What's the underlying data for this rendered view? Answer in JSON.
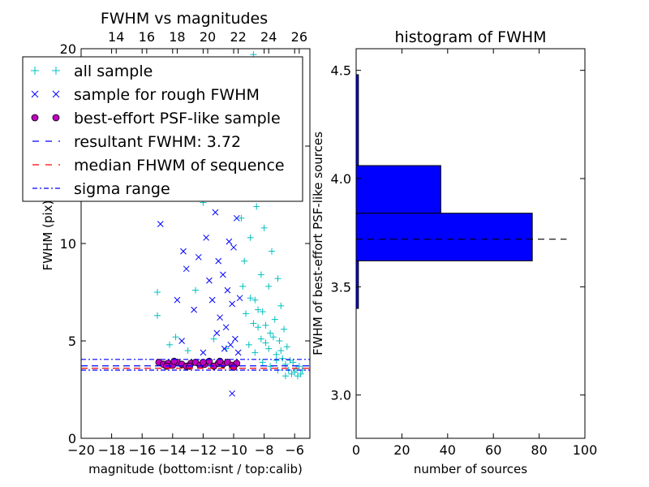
{
  "chart_data": [
    {
      "type": "scatter",
      "title": "FWHM vs magnitudes",
      "xlabel": "magnitude (bottom:isnt / top:calib)",
      "ylabel": "FWHM (pix)",
      "xlim": [
        -20,
        -5
      ],
      "ylim": [
        0,
        20
      ],
      "x_ticks": [
        -20,
        -18,
        -16,
        -14,
        -12,
        -10,
        -8,
        -6
      ],
      "x_tick_labels": [
        "−20",
        "−18",
        "−16",
        "−14",
        "−12",
        "−10",
        "−8",
        "−6"
      ],
      "y_ticks": [
        0,
        5,
        10,
        15,
        20
      ],
      "y_tick_labels": [
        "0",
        "5",
        "10",
        "15",
        "20"
      ],
      "top_axis": {
        "offset": 31.7,
        "ticks": [
          14,
          16,
          18,
          20,
          22,
          24,
          26
        ],
        "tick_labels": [
          "14",
          "16",
          "18",
          "20",
          "22",
          "24",
          "26"
        ]
      },
      "legend": {
        "placement": "upper-left",
        "entries": [
          {
            "label": "all sample",
            "marker": "+",
            "color": "#00bfbf"
          },
          {
            "label": "sample for rough FWHM",
            "marker": "x",
            "color": "#0000ff"
          },
          {
            "label": "best-effort PSF-like sample",
            "marker": "o",
            "color": "#bf00bf"
          },
          {
            "label": "resultant FWHM: 3.72",
            "style": "dashed",
            "color": "#0000ff"
          },
          {
            "label": "median FHWM of sequence",
            "style": "dashed",
            "color": "#ff0000"
          },
          {
            "label": "sigma range",
            "style": "dashdot",
            "color": "#0000ff"
          }
        ]
      },
      "series": [
        {
          "name": "all sample",
          "marker": "+",
          "color": "#00bfbf",
          "points": [
            [
              -15.0,
              7.5
            ],
            [
              -15.0,
              6.3
            ],
            [
              -14.2,
              4.8
            ],
            [
              -13.8,
              5.2
            ],
            [
              -14.8,
              15.0
            ],
            [
              -13.0,
              4.5
            ],
            [
              -12.5,
              7.6
            ],
            [
              -12.0,
              12.1
            ],
            [
              -11.6,
              14.8
            ],
            [
              -11.3,
              5.1
            ],
            [
              -10.9,
              17.2
            ],
            [
              -10.7,
              19.2
            ],
            [
              -10.5,
              4.6
            ],
            [
              -10.3,
              12.5
            ],
            [
              -9.7,
              18.5
            ],
            [
              -9.5,
              11.3
            ],
            [
              -9.4,
              13.9
            ],
            [
              -9.3,
              9.1
            ],
            [
              -9.1,
              16.1
            ],
            [
              -9.0,
              4.8
            ],
            [
              -8.9,
              10.3
            ],
            [
              -8.8,
              13.5
            ],
            [
              -8.7,
              19.7
            ],
            [
              -8.6,
              7.1
            ],
            [
              -8.5,
              11.9
            ],
            [
              -8.4,
              5.7
            ],
            [
              -8.3,
              15.2
            ],
            [
              -8.2,
              8.4
            ],
            [
              -8.1,
              6.5
            ],
            [
              -8.0,
              10.8
            ],
            [
              -7.9,
              4.9
            ],
            [
              -7.8,
              12.7
            ],
            [
              -7.7,
              7.8
            ],
            [
              -7.6,
              5.4
            ],
            [
              -7.5,
              9.6
            ],
            [
              -7.4,
              16.4
            ],
            [
              -7.3,
              6.1
            ],
            [
              -7.2,
              4.3
            ],
            [
              -7.1,
              8.2
            ],
            [
              -7.0,
              5.0
            ],
            [
              -6.9,
              6.8
            ],
            [
              -6.8,
              4.1
            ],
            [
              -6.7,
              5.6
            ],
            [
              -6.6,
              3.8
            ],
            [
              -6.5,
              4.7
            ],
            [
              -6.4,
              3.5
            ],
            [
              -6.3,
              4.0
            ],
            [
              -6.2,
              3.3
            ],
            [
              -6.1,
              3.9
            ],
            [
              -6.0,
              3.4
            ],
            [
              -5.9,
              3.6
            ],
            [
              -5.8,
              3.2
            ],
            [
              -5.7,
              3.7
            ],
            [
              -5.6,
              3.3
            ],
            [
              -5.5,
              3.5
            ],
            [
              -8.6,
              4.4
            ],
            [
              -8.1,
              3.9
            ],
            [
              -7.6,
              3.7
            ],
            [
              -7.1,
              3.5
            ],
            [
              -6.6,
              3.2
            ],
            [
              -9.2,
              6.4
            ],
            [
              -8.7,
              5.9
            ],
            [
              -8.2,
              5.1
            ],
            [
              -7.7,
              4.6
            ],
            [
              -7.2,
              4.0
            ],
            [
              -9.4,
              7.8
            ],
            [
              -8.9,
              7.2
            ],
            [
              -8.4,
              6.6
            ],
            [
              -7.9,
              5.8
            ],
            [
              -7.4,
              5.2
            ],
            [
              -6.9,
              4.5
            ],
            [
              -8.0,
              14.3
            ],
            [
              -7.5,
              13.1
            ],
            [
              -9.0,
              17.6
            ]
          ]
        },
        {
          "name": "sample for rough FWHM",
          "marker": "x",
          "color": "#0000ff",
          "points": [
            [
              -14.8,
              11.0
            ],
            [
              -13.7,
              7.1
            ],
            [
              -13.4,
              5.0
            ],
            [
              -13.3,
              9.6
            ],
            [
              -13.1,
              8.7
            ],
            [
              -12.6,
              6.6
            ],
            [
              -12.3,
              9.3
            ],
            [
              -12.2,
              16.9
            ],
            [
              -12.0,
              4.4
            ],
            [
              -11.9,
              13.8
            ],
            [
              -11.8,
              10.3
            ],
            [
              -11.6,
              8.1
            ],
            [
              -11.4,
              7.1
            ],
            [
              -11.2,
              11.6
            ],
            [
              -11.0,
              9.1
            ],
            [
              -10.9,
              6.2
            ],
            [
              -10.8,
              15.2
            ],
            [
              -10.7,
              8.4
            ],
            [
              -10.6,
              12.4
            ],
            [
              -10.5,
              5.7
            ],
            [
              -10.4,
              7.6
            ],
            [
              -10.3,
              10.1
            ],
            [
              -10.2,
              4.8
            ],
            [
              -10.1,
              6.9
            ],
            [
              -10.0,
              9.8
            ],
            [
              -9.9,
              5.1
            ],
            [
              -9.8,
              11.3
            ],
            [
              -9.7,
              4.4
            ],
            [
              -9.6,
              7.2
            ],
            [
              -10.1,
              2.3
            ],
            [
              -10.6,
              4.6
            ],
            [
              -11.1,
              5.4
            ]
          ]
        },
        {
          "name": "best-effort PSF-like sample",
          "marker": "o",
          "color": "#bf00bf",
          "points": [
            [
              -14.9,
              3.9
            ],
            [
              -14.6,
              3.8
            ],
            [
              -14.3,
              3.85
            ],
            [
              -14.0,
              3.75
            ],
            [
              -13.7,
              3.9
            ],
            [
              -13.4,
              3.8
            ],
            [
              -13.1,
              3.7
            ],
            [
              -12.8,
              3.85
            ],
            [
              -12.5,
              3.9
            ],
            [
              -12.2,
              3.75
            ],
            [
              -11.9,
              3.8
            ],
            [
              -11.6,
              3.95
            ],
            [
              -11.3,
              3.7
            ],
            [
              -11.0,
              3.85
            ],
            [
              -10.7,
              3.8
            ],
            [
              -10.4,
              3.9
            ],
            [
              -10.1,
              3.75
            ],
            [
              -9.8,
              3.85
            ],
            [
              -14.4,
              3.7
            ],
            [
              -13.9,
              3.95
            ],
            [
              -12.9,
              3.7
            ],
            [
              -12.0,
              3.9
            ],
            [
              -10.9,
              3.95
            ],
            [
              -10.0,
              3.65
            ]
          ]
        },
        {
          "name": "resultant FWHM: 3.72",
          "type": "hline",
          "style": "dashed",
          "color": "#0000ff",
          "y": 3.72
        },
        {
          "name": "median FHWM of sequence",
          "type": "hline",
          "style": "dashed",
          "color": "#ff0000",
          "y": 3.72
        },
        {
          "name": "sigma range",
          "type": "hline",
          "style": "dashdot",
          "color": "#0000ff",
          "y": [
            3.5,
            4.05
          ]
        }
      ]
    },
    {
      "type": "bar",
      "orientation": "horizontal",
      "title": "histogram of FWHM",
      "xlabel": "number of sources",
      "ylabel": "FWHM of best-effort PSF-like sources",
      "xlim": [
        0,
        100
      ],
      "ylim": [
        2.8,
        4.6
      ],
      "x_ticks": [
        0,
        20,
        40,
        60,
        80,
        100
      ],
      "x_tick_labels": [
        "0",
        "20",
        "40",
        "60",
        "80",
        "100"
      ],
      "y_ticks": [
        3.0,
        3.5,
        4.0,
        4.5
      ],
      "y_tick_labels": [
        "3.0",
        "3.5",
        "4.0",
        "4.5"
      ],
      "color": "#0000ff",
      "bins": [
        {
          "low": 3.4,
          "high": 3.62,
          "count": 1
        },
        {
          "low": 3.62,
          "high": 3.84,
          "count": 77
        },
        {
          "low": 3.84,
          "high": 4.06,
          "count": 37
        },
        {
          "low": 4.06,
          "high": 4.48,
          "count": 1
        }
      ],
      "reference_line": {
        "y": 3.72,
        "x_range": [
          0,
          92
        ],
        "style": "dashed",
        "color": "#000000"
      }
    }
  ]
}
